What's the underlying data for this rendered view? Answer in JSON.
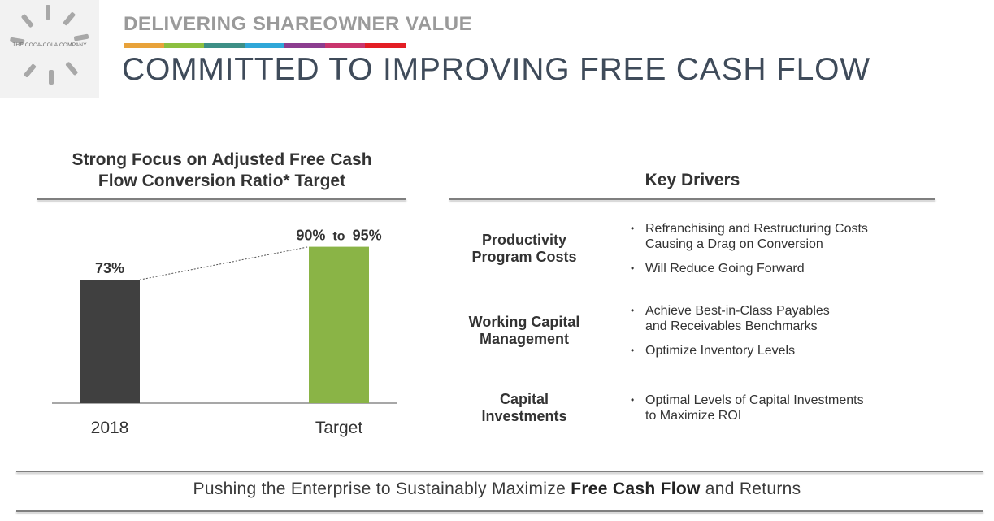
{
  "logo": {
    "text": "THE COCA-COLA COMPANY"
  },
  "header": {
    "supertitle": "DELIVERING SHAREOWNER VALUE",
    "title": "COMMITTED TO IMPROVING FREE CASH FLOW",
    "stripe_colors": [
      "#e8a23a",
      "#8cbf3f",
      "#3d8f86",
      "#2fa7d8",
      "#8c3d8f",
      "#c9356d",
      "#e31e24"
    ]
  },
  "chart_data": {
    "type": "bar",
    "title_line1": "Strong Focus on Adjusted Free Cash",
    "title_line2": "Flow Conversion Ratio* Target",
    "categories": [
      "2018",
      "Target"
    ],
    "values": [
      73,
      92.5
    ],
    "labels": [
      "73%",
      "90% to 95%"
    ],
    "label_target_parts": [
      "90%",
      "to",
      "95%"
    ],
    "colors": [
      "#404040",
      "#8ab446"
    ],
    "ylim": [
      0,
      100
    ],
    "connector": "dotted"
  },
  "drivers": {
    "title": "Key Drivers",
    "items": [
      {
        "label_line1": "Productivity",
        "label_line2": "Program Costs",
        "bullets": [
          {
            "line1": "Refranchising and Restructuring Costs",
            "line2": "Causing a Drag on Conversion"
          },
          {
            "line1": "Will Reduce Going Forward",
            "line2": ""
          }
        ]
      },
      {
        "label_line1": "Working Capital",
        "label_line2": "Management",
        "bullets": [
          {
            "line1": "Achieve Best-in-Class Payables",
            "line2": "and Receivables Benchmarks"
          },
          {
            "line1": "Optimize Inventory Levels",
            "line2": ""
          }
        ]
      },
      {
        "label_line1": "Capital",
        "label_line2": "Investments",
        "bullets": [
          {
            "line1": "Optimal Levels of Capital Investments",
            "line2": "to Maximize ROI"
          }
        ]
      }
    ]
  },
  "footer": {
    "pre": "Pushing the Enterprise to Sustainably Maximize",
    "bold": "Free Cash Flow",
    "post": "and Returns"
  }
}
